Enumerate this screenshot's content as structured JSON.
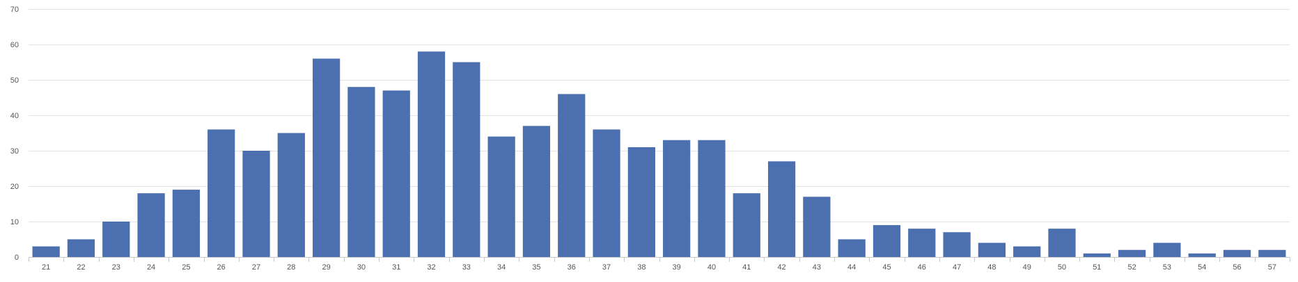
{
  "chart_data": {
    "type": "bar",
    "title": "",
    "xlabel": "",
    "ylabel": "",
    "categories": [
      "21",
      "22",
      "23",
      "24",
      "25",
      "26",
      "27",
      "28",
      "29",
      "30",
      "31",
      "32",
      "33",
      "34",
      "35",
      "36",
      "37",
      "38",
      "39",
      "40",
      "41",
      "42",
      "43",
      "44",
      "45",
      "46",
      "47",
      "48",
      "49",
      "50",
      "51",
      "52",
      "53",
      "54",
      "56",
      "57"
    ],
    "values": [
      3,
      5,
      10,
      18,
      19,
      36,
      30,
      35,
      56,
      48,
      47,
      58,
      55,
      34,
      37,
      46,
      36,
      31,
      33,
      33,
      18,
      27,
      17,
      5,
      9,
      8,
      7,
      4,
      3,
      8,
      1,
      2,
      4,
      1,
      2,
      2
    ],
    "ylim": [
      0,
      70
    ],
    "yticks": [
      "0",
      "10",
      "20",
      "30",
      "40",
      "50",
      "60",
      "70"
    ],
    "grid": true,
    "legend": "none"
  },
  "colors": {
    "bar": "#4c6fb0",
    "grid": "#e4e4e4",
    "axis": "#c8c8c8",
    "text": "#555555"
  }
}
